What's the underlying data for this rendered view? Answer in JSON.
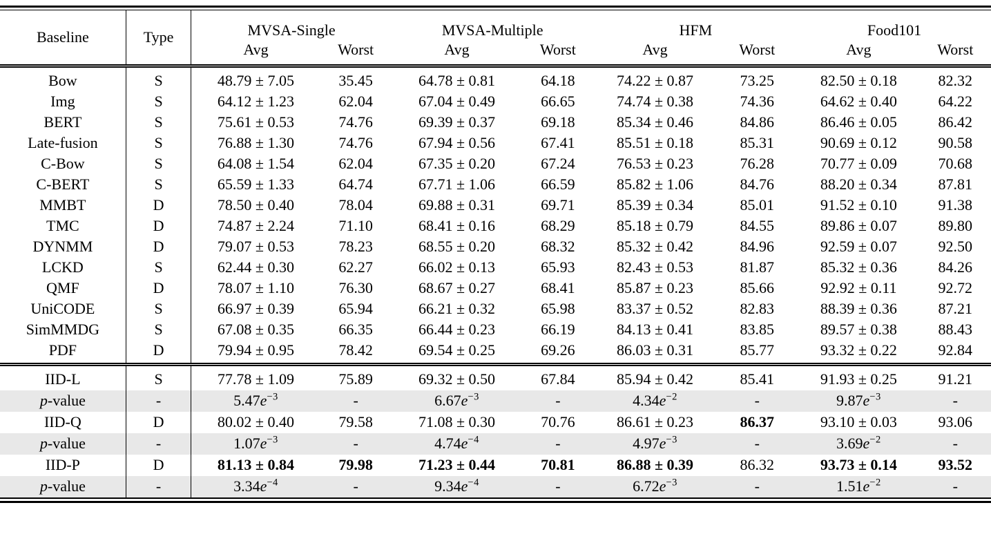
{
  "table": {
    "headers": {
      "baseline": "Baseline",
      "type": "Type"
    },
    "groups": [
      {
        "label": "MVSA-Single",
        "sub": [
          "Avg",
          "Worst"
        ]
      },
      {
        "label": "MVSA-Multiple",
        "sub": [
          "Avg",
          "Worst"
        ]
      },
      {
        "label": "HFM",
        "sub": [
          "Avg",
          "Worst"
        ]
      },
      {
        "label": "Food101",
        "sub": [
          "Avg",
          "Worst"
        ]
      }
    ],
    "colors": {
      "pvalue_row_bg": "#e8e8e8",
      "text": "#000000"
    },
    "sections": [
      {
        "name": "baselines",
        "rows": [
          {
            "baseline": "Bow",
            "type": "S",
            "values": [
              "48.79 ± 7.05",
              "35.45",
              "64.78 ± 0.81",
              "64.18",
              "74.22 ± 0.87",
              "73.25",
              "82.50 ± 0.18",
              "82.32"
            ]
          },
          {
            "baseline": "Img",
            "type": "S",
            "values": [
              "64.12 ± 1.23",
              "62.04",
              "67.04 ± 0.49",
              "66.65",
              "74.74 ± 0.38",
              "74.36",
              "64.62 ± 0.40",
              "64.22"
            ]
          },
          {
            "baseline": "BERT",
            "type": "S",
            "values": [
              "75.61 ± 0.53",
              "74.76",
              "69.39 ± 0.37",
              "69.18",
              "85.34 ± 0.46",
              "84.86",
              "86.46 ± 0.05",
              "86.42"
            ]
          },
          {
            "baseline": "Late-fusion",
            "type": "S",
            "values": [
              "76.88 ± 1.30",
              "74.76",
              "67.94 ± 0.56",
              "67.41",
              "85.51 ± 0.18",
              "85.31",
              "90.69 ± 0.12",
              "90.58"
            ]
          },
          {
            "baseline": "C-Bow",
            "type": "S",
            "values": [
              "64.08 ± 1.54",
              "62.04",
              "67.35 ± 0.20",
              "67.24",
              "76.53 ± 0.23",
              "76.28",
              "70.77 ± 0.09",
              "70.68"
            ]
          },
          {
            "baseline": "C-BERT",
            "type": "S",
            "values": [
              "65.59 ± 1.33",
              "64.74",
              "67.71 ± 1.06",
              "66.59",
              "85.82 ± 1.06",
              "84.76",
              "88.20 ± 0.34",
              "87.81"
            ]
          },
          {
            "baseline": "MMBT",
            "type": "D",
            "values": [
              "78.50 ± 0.40",
              "78.04",
              "69.88 ± 0.31",
              "69.71",
              "85.39 ± 0.34",
              "85.01",
              "91.52 ± 0.10",
              "91.38"
            ]
          },
          {
            "baseline": "TMC",
            "type": "D",
            "values": [
              "74.87 ± 2.24",
              "71.10",
              "68.41 ± 0.16",
              "68.29",
              "85.18 ± 0.79",
              "84.55",
              "89.86 ± 0.07",
              "89.80"
            ]
          },
          {
            "baseline": "DYNMM",
            "type": "D",
            "values": [
              "79.07 ± 0.53",
              "78.23",
              "68.55 ± 0.20",
              "68.32",
              "85.32 ± 0.42",
              "84.96",
              "92.59 ± 0.07",
              "92.50"
            ]
          },
          {
            "baseline": "LCKD",
            "type": "S",
            "values": [
              "62.44 ± 0.30",
              "62.27",
              "66.02 ± 0.13",
              "65.93",
              "82.43 ± 0.53",
              "81.87",
              "85.32 ± 0.36",
              "84.26"
            ]
          },
          {
            "baseline": "QMF",
            "type": "D",
            "values": [
              "78.07 ± 1.10",
              "76.30",
              "68.67 ± 0.27",
              "68.41",
              "85.87 ± 0.23",
              "85.66",
              "92.92 ± 0.11",
              "92.72"
            ]
          },
          {
            "baseline": "UniCODE",
            "type": "S",
            "values": [
              "66.97 ± 0.39",
              "65.94",
              "66.21 ± 0.32",
              "65.98",
              "83.37 ± 0.52",
              "82.83",
              "88.39 ± 0.36",
              "87.21"
            ]
          },
          {
            "baseline": "SimMMDG",
            "type": "S",
            "values": [
              "67.08 ± 0.35",
              "66.35",
              "66.44 ± 0.23",
              "66.19",
              "84.13 ± 0.41",
              "83.85",
              "89.57 ± 0.38",
              "88.43"
            ]
          },
          {
            "baseline": "PDF",
            "type": "D",
            "values": [
              "79.94 ± 0.95",
              "78.42",
              "69.54 ± 0.25",
              "69.26",
              "86.03 ± 0.31",
              "85.77",
              "93.32 ± 0.22",
              "92.84"
            ]
          }
        ]
      },
      {
        "name": "ours",
        "rows": [
          {
            "baseline": "IID-L",
            "type": "S",
            "values": [
              "77.78 ± 1.09",
              "75.89",
              "69.32 ± 0.50",
              "67.84",
              "85.94 ± 0.42",
              "85.41",
              "91.93 ± 0.25",
              "91.21"
            ]
          },
          {
            "baseline": "p-value",
            "type": "-",
            "pvalue": true,
            "values": [
              "5.47e-3",
              "-",
              "6.67e-3",
              "-",
              "4.34e-2",
              "-",
              "9.87e-3",
              "-"
            ]
          },
          {
            "baseline": "IID-Q",
            "type": "D",
            "values": [
              "80.02 ± 0.40",
              "79.58",
              "71.08 ± 0.30",
              "70.76",
              "86.61 ± 0.23",
              "86.37",
              "93.10 ± 0.03",
              "93.06"
            ],
            "bold": [
              false,
              false,
              false,
              false,
              false,
              true,
              false,
              false
            ]
          },
          {
            "baseline": "p-value",
            "type": "-",
            "pvalue": true,
            "values": [
              "1.07e-3",
              "-",
              "4.74e-4",
              "-",
              "4.97e-3",
              "-",
              "3.69e-2",
              "-"
            ]
          },
          {
            "baseline": "IID-P",
            "type": "D",
            "values": [
              "81.13 ± 0.84",
              "79.98",
              "71.23 ± 0.44",
              "70.81",
              "86.88 ± 0.39",
              "86.32",
              "93.73 ± 0.14",
              "93.52"
            ],
            "bold": [
              true,
              true,
              true,
              true,
              true,
              false,
              true,
              true
            ]
          },
          {
            "baseline": "p-value",
            "type": "-",
            "pvalue": true,
            "values": [
              "3.34e-4",
              "-",
              "9.34e-4",
              "-",
              "6.72e-3",
              "-",
              "1.51e-2",
              "-"
            ]
          }
        ]
      }
    ]
  }
}
